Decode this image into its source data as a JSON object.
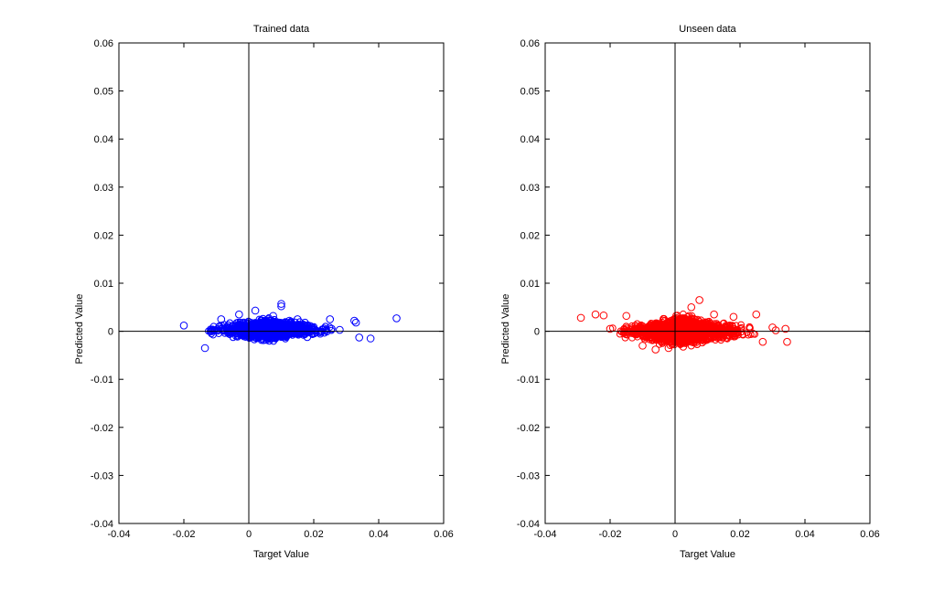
{
  "chart_data": [
    {
      "type": "scatter",
      "title": "Trained data",
      "xlabel": "Target Value",
      "ylabel": "Predicted Value",
      "xlim": [
        -0.04,
        0.06
      ],
      "ylim": [
        -0.04,
        0.06
      ],
      "x_ticks": [
        -0.04,
        -0.02,
        0,
        0.02,
        0.04,
        0.06
      ],
      "x_tick_labels": [
        "-0.04",
        "-0.02",
        "0",
        "0.02",
        "0.04",
        "0.06"
      ],
      "y_ticks": [
        -0.04,
        -0.03,
        -0.02,
        -0.01,
        0,
        0.01,
        0.02,
        0.03,
        0.04,
        0.05,
        0.06
      ],
      "y_tick_labels": [
        "-0.04",
        "-0.03",
        "-0.02",
        "-0.01",
        "0",
        "0.01",
        "0.02",
        "0.03",
        "0.04",
        "0.05",
        "0.06"
      ],
      "marker": "circle-open",
      "color": "#0000ff",
      "grid": false,
      "cluster": {
        "x_range": [
          -0.018,
          0.03
        ],
        "y_range": [
          -0.0025,
          0.0032
        ],
        "n_points": 1400
      },
      "points": [
        [
          -0.02,
          0.0012
        ],
        [
          -0.0135,
          -0.0035
        ],
        [
          -0.0085,
          0.0025
        ],
        [
          -0.003,
          0.0035
        ],
        [
          0.002,
          0.0043
        ],
        [
          0.0075,
          0.0032
        ],
        [
          0.01,
          0.0057
        ],
        [
          0.01,
          0.0052
        ],
        [
          0.0125,
          0.0022
        ],
        [
          0.015,
          0.0025
        ],
        [
          0.018,
          -0.0012
        ],
        [
          0.0195,
          0.0008
        ],
        [
          0.022,
          -0.0005
        ],
        [
          0.025,
          0.0025
        ],
        [
          0.0255,
          0.0005
        ],
        [
          0.028,
          0.0003
        ],
        [
          0.0325,
          0.0022
        ],
        [
          0.033,
          0.0018
        ],
        [
          0.034,
          -0.0013
        ],
        [
          0.0375,
          -0.0015
        ],
        [
          0.0455,
          0.0027
        ]
      ]
    },
    {
      "type": "scatter",
      "title": "Unseen data",
      "xlabel": "Target Value",
      "ylabel": "Predicted Value",
      "xlim": [
        -0.04,
        0.06
      ],
      "ylim": [
        -0.04,
        0.06
      ],
      "x_ticks": [
        -0.04,
        -0.02,
        0,
        0.02,
        0.04,
        0.06
      ],
      "x_tick_labels": [
        "-0.04",
        "-0.02",
        "0",
        "0.02",
        "0.04",
        "0.06"
      ],
      "y_ticks": [
        -0.04,
        -0.03,
        -0.02,
        -0.01,
        0,
        0.01,
        0.02,
        0.03,
        0.04,
        0.05,
        0.06
      ],
      "y_tick_labels": [
        "-0.04",
        "-0.03",
        "-0.02",
        "-0.01",
        "0",
        "0.01",
        "0.02",
        "0.03",
        "0.04",
        "0.05",
        "0.06"
      ],
      "marker": "circle-open",
      "color": "#ff0000",
      "grid": false,
      "cluster": {
        "x_range": [
          -0.023,
          0.028
        ],
        "y_range": [
          -0.0038,
          0.0038
        ],
        "n_points": 1800
      },
      "points": [
        [
          -0.029,
          0.0028
        ],
        [
          -0.0245,
          0.0035
        ],
        [
          -0.022,
          0.0033
        ],
        [
          -0.02,
          0.0005
        ],
        [
          -0.015,
          0.0032
        ],
        [
          -0.01,
          -0.003
        ],
        [
          -0.006,
          -0.0038
        ],
        [
          -0.002,
          -0.0035
        ],
        [
          0.0025,
          -0.0032
        ],
        [
          0.0075,
          0.0065
        ],
        [
          0.005,
          0.005
        ],
        [
          0.012,
          0.0035
        ],
        [
          0.018,
          0.003
        ],
        [
          0.024,
          -0.0005
        ],
        [
          0.025,
          0.0035
        ],
        [
          0.027,
          -0.0022
        ],
        [
          0.03,
          0.0008
        ],
        [
          0.031,
          0.0002
        ],
        [
          0.034,
          0.0005
        ],
        [
          0.0345,
          -0.0022
        ]
      ]
    }
  ]
}
